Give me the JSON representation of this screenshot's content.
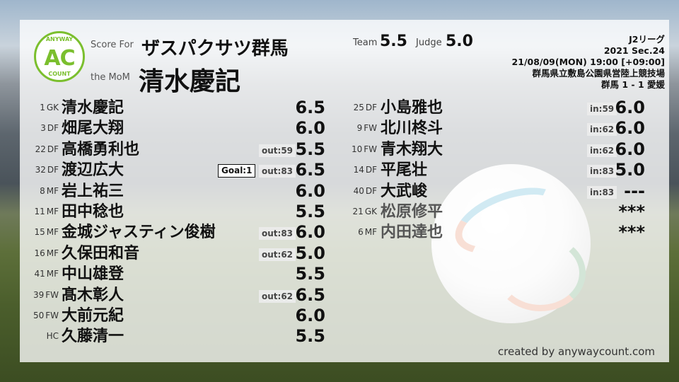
{
  "logo": {
    "top": "ANYWAY",
    "mid": "AC",
    "bottom": "COUNT"
  },
  "header": {
    "score_for_label": "Score For",
    "team": "ザスパクサツ群馬",
    "mom_label": "the MoM",
    "mom": "清水慶記",
    "team_label": "Team",
    "team_score": "5.5",
    "judge_label": "Judge",
    "judge_score": "5.0"
  },
  "match": {
    "league": "J2リーグ",
    "season": "2021 Sec.24",
    "datetime": "21/08/09(MON) 19:00 [+09:00]",
    "venue": "群馬県立敷島公園県営陸上競技場",
    "result": "群馬 1 - 1 愛媛"
  },
  "left": [
    {
      "num": "1",
      "pos": "GK",
      "name": "清水慶記",
      "goal": "",
      "sub": "",
      "score": "6.5"
    },
    {
      "num": "3",
      "pos": "DF",
      "name": "畑尾大翔",
      "goal": "",
      "sub": "",
      "score": "6.0"
    },
    {
      "num": "22",
      "pos": "DF",
      "name": "高橋勇利也",
      "goal": "",
      "sub": "out:59",
      "score": "5.5"
    },
    {
      "num": "32",
      "pos": "DF",
      "name": "渡辺広大",
      "goal": "Goal:1",
      "sub": "out:83",
      "score": "6.5"
    },
    {
      "num": "8",
      "pos": "MF",
      "name": "岩上祐三",
      "goal": "",
      "sub": "",
      "score": "6.0"
    },
    {
      "num": "11",
      "pos": "MF",
      "name": "田中稔也",
      "goal": "",
      "sub": "",
      "score": "5.5"
    },
    {
      "num": "15",
      "pos": "MF",
      "name": "金城ジャスティン俊樹",
      "goal": "",
      "sub": "out:83",
      "score": "6.0"
    },
    {
      "num": "16",
      "pos": "MF",
      "name": "久保田和音",
      "goal": "",
      "sub": "out:62",
      "score": "5.0"
    },
    {
      "num": "41",
      "pos": "MF",
      "name": "中山雄登",
      "goal": "",
      "sub": "",
      "score": "5.5"
    },
    {
      "num": "39",
      "pos": "FW",
      "name": "髙木彰人",
      "goal": "",
      "sub": "out:62",
      "score": "6.5"
    },
    {
      "num": "50",
      "pos": "FW",
      "name": "大前元紀",
      "goal": "",
      "sub": "",
      "score": "6.0"
    },
    {
      "num": "",
      "pos": "HC",
      "name": "久藤清一",
      "goal": "",
      "sub": "",
      "score": "5.5"
    }
  ],
  "right": [
    {
      "num": "25",
      "pos": "DF",
      "name": "小島雅也",
      "sub": "in:59",
      "score": "6.0",
      "unused": false
    },
    {
      "num": "9",
      "pos": "FW",
      "name": "北川柊斗",
      "sub": "in:62",
      "score": "6.0",
      "unused": false
    },
    {
      "num": "10",
      "pos": "FW",
      "name": "青木翔大",
      "sub": "in:62",
      "score": "6.0",
      "unused": false
    },
    {
      "num": "14",
      "pos": "DF",
      "name": "平尾壮",
      "sub": "in:83",
      "score": "5.0",
      "unused": false
    },
    {
      "num": "40",
      "pos": "DF",
      "name": "大武峻",
      "sub": "in:83",
      "score": "---",
      "unused": false
    },
    {
      "num": "21",
      "pos": "GK",
      "name": "松原修平",
      "sub": "",
      "score": "***",
      "unused": true
    },
    {
      "num": "6",
      "pos": "MF",
      "name": "内田達也",
      "sub": "",
      "score": "***",
      "unused": true
    }
  ],
  "footer": {
    "credit": "created by anywaycount.com"
  },
  "colors": {
    "logo_green": "#7bbf2e"
  }
}
